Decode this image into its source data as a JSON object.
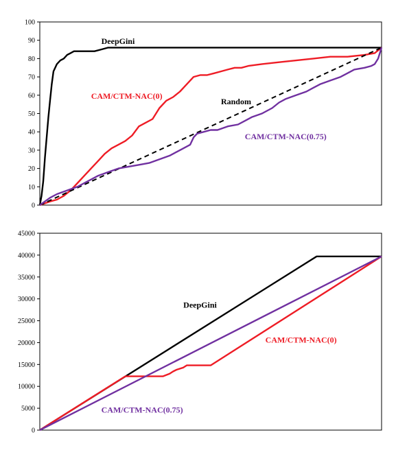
{
  "chart_data": [
    {
      "type": "line",
      "title": "",
      "xlabel": "",
      "ylabel": "",
      "ylim": [
        0,
        100
      ],
      "yticks": [
        0,
        10,
        20,
        30,
        40,
        50,
        60,
        70,
        80,
        90,
        100
      ],
      "xlim": [
        0,
        100
      ],
      "grid": false,
      "legend": "none",
      "series": [
        {
          "name": "DeepGini",
          "color": "#000000",
          "dash": false,
          "x": [
            0,
            0.5,
            1,
            1.5,
            2,
            2.5,
            3,
            3.5,
            4,
            5,
            6,
            7,
            8,
            9,
            10,
            11,
            12,
            14,
            16,
            18,
            20,
            25,
            30,
            35,
            40,
            50,
            60,
            70,
            80,
            90,
            100
          ],
          "y": [
            0,
            5,
            13,
            26,
            37,
            48,
            57,
            66,
            73,
            77,
            79,
            80,
            82,
            83,
            84,
            84,
            84,
            84,
            84,
            85,
            86,
            86,
            86,
            86,
            86,
            86,
            86,
            86,
            86,
            86,
            86
          ]
        },
        {
          "name": "CAM/CTM-NAC(0)",
          "color": "#ee1c25",
          "dash": false,
          "x": [
            0,
            3,
            5,
            7,
            9,
            11,
            13,
            15,
            17,
            19,
            21,
            23,
            25,
            27,
            29,
            31,
            33,
            35,
            37,
            39,
            41,
            43,
            45,
            47,
            49,
            51,
            53,
            55,
            57,
            59,
            61,
            65,
            70,
            75,
            80,
            85,
            90,
            95,
            98,
            100
          ],
          "y": [
            0,
            2,
            3,
            5,
            8,
            12,
            16,
            20,
            24,
            28,
            31,
            33,
            35,
            38,
            43,
            45,
            47,
            53,
            57,
            59,
            62,
            66,
            70,
            71,
            71,
            72,
            73,
            74,
            75,
            75,
            76,
            77,
            78,
            79,
            80,
            81,
            81,
            82,
            83,
            86
          ]
        },
        {
          "name": "Random",
          "color": "#000000",
          "dash": true,
          "x": [
            0,
            100
          ],
          "y": [
            0,
            86
          ]
        },
        {
          "name": "CAM/CTM-NAC(0.75)",
          "color": "#7030a0",
          "dash": false,
          "x": [
            0,
            3,
            5,
            8,
            11,
            14,
            17,
            20,
            23,
            26,
            29,
            32,
            35,
            38,
            41,
            44,
            45,
            46,
            48,
            50,
            52,
            55,
            58,
            60,
            62,
            65,
            68,
            70,
            72,
            75,
            78,
            80,
            82,
            85,
            88,
            90,
            92,
            95,
            97,
            98,
            99,
            100
          ],
          "y": [
            0,
            4,
            6,
            8,
            10,
            13,
            16,
            18,
            20,
            21,
            22,
            23,
            25,
            27,
            30,
            33,
            37,
            39,
            40,
            41,
            41,
            43,
            44,
            46,
            48,
            50,
            53,
            56,
            58,
            60,
            62,
            64,
            66,
            68,
            70,
            72,
            74,
            75,
            76,
            77,
            80,
            86
          ]
        }
      ],
      "annotations": [
        {
          "text": "DeepGini",
          "color": "#000000",
          "x": 18,
          "y": 88
        },
        {
          "text": "CAM/CTM-NAC(0)",
          "color": "#ee1c25",
          "x": 15,
          "y": 58
        },
        {
          "text": "Random",
          "color": "#000000",
          "x": 53,
          "y": 55
        },
        {
          "text": "CAM/CTM-NAC(0.75)",
          "color": "#7030a0",
          "x": 60,
          "y": 36
        }
      ]
    },
    {
      "type": "line",
      "title": "",
      "xlabel": "",
      "ylabel": "",
      "ylim": [
        0,
        45000
      ],
      "yticks": [
        0,
        5000,
        10000,
        15000,
        20000,
        25000,
        30000,
        35000,
        40000,
        45000
      ],
      "xlim": [
        0,
        100
      ],
      "grid": false,
      "legend": "none",
      "series": [
        {
          "name": "DeepGini",
          "color": "#000000",
          "dash": false,
          "x": [
            0,
            81,
            100
          ],
          "y": [
            0,
            39700,
            39700
          ]
        },
        {
          "name": "CAM/CTM-NAC(0)",
          "color": "#ee1c25",
          "dash": false,
          "x": [
            0,
            25,
            36,
            38,
            39,
            40,
            42,
            43,
            50,
            100
          ],
          "y": [
            0,
            12300,
            12300,
            12900,
            13400,
            13800,
            14300,
            14800,
            14800,
            39700
          ]
        },
        {
          "name": "CAM/CTM-NAC(0.75)",
          "color": "#7030a0",
          "dash": false,
          "x": [
            0,
            100
          ],
          "y": [
            0,
            39700
          ]
        }
      ],
      "annotations": [
        {
          "text": "DeepGini",
          "color": "#000000",
          "x": 42,
          "y": 28000
        },
        {
          "text": "CAM/CTM-NAC(0)",
          "color": "#ee1c25",
          "x": 66,
          "y": 20000
        },
        {
          "text": "CAM/CTM-NAC(0.75)",
          "color": "#7030a0",
          "x": 18,
          "y": 4000
        }
      ]
    }
  ]
}
